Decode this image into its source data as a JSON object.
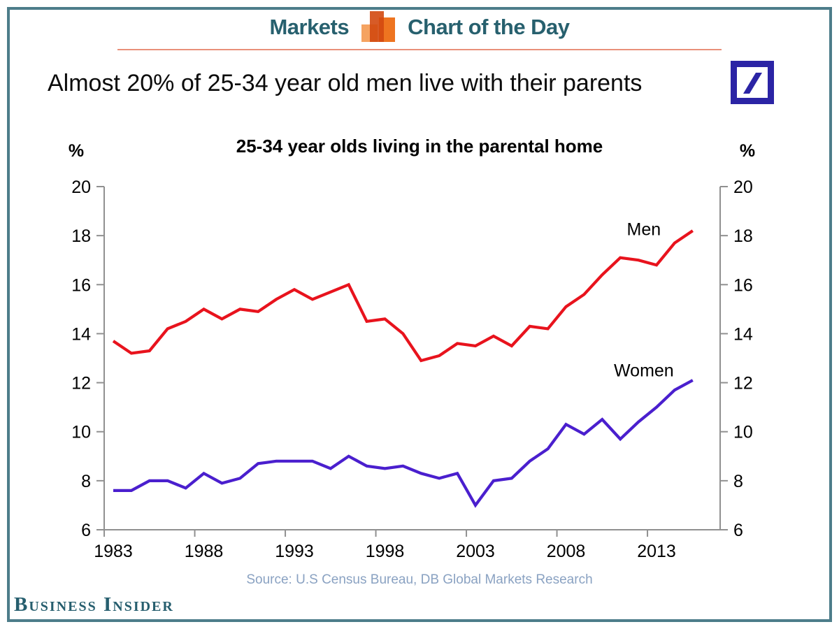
{
  "colors": {
    "frame_border": "#4d7d8a",
    "header_text": "#27606e",
    "divider": "#e9907a",
    "db_blue": "#2b24a5",
    "axis": "#909090",
    "source_text": "#8aa2c2",
    "bi_text": "#265e6e",
    "icon_light": "#f5a361",
    "icon_dark": "#d3490f",
    "icon_mid": "#ee7420",
    "men_line": "#e8131d",
    "women_line": "#4a1fce"
  },
  "header": {
    "left_label": "Markets",
    "right_label": "Chart of the Day",
    "icon": "bar-chart-icon"
  },
  "headline": "Almost 20% of 25-34 year old men live with their parents",
  "chart_data": {
    "type": "line",
    "title": "25-34 year olds living in the parental home",
    "y_unit_left": "%",
    "y_unit_right": "%",
    "ylim": [
      6,
      20
    ],
    "yticks": [
      6,
      8,
      10,
      12,
      14,
      16,
      18,
      20
    ],
    "xticks": [
      1983,
      1988,
      1993,
      1998,
      2003,
      2008,
      2013
    ],
    "grid": false,
    "legend_position": "inline-annotations",
    "x": [
      1983,
      1984,
      1985,
      1986,
      1987,
      1988,
      1989,
      1990,
      1991,
      1992,
      1993,
      1994,
      1995,
      1996,
      1997,
      1998,
      1999,
      2000,
      2001,
      2002,
      2003,
      2004,
      2005,
      2006,
      2007,
      2008,
      2009,
      2010,
      2011,
      2012,
      2013,
      2014,
      2015
    ],
    "series": [
      {
        "name": "Men",
        "color": "#e8131d",
        "values": [
          13.7,
          13.2,
          13.3,
          14.2,
          14.5,
          15.0,
          14.6,
          15.0,
          14.9,
          15.4,
          15.8,
          15.4,
          15.7,
          16.0,
          14.5,
          14.6,
          14.0,
          12.9,
          13.1,
          13.6,
          13.5,
          13.9,
          13.5,
          14.3,
          14.2,
          15.1,
          15.6,
          16.4,
          17.1,
          17.0,
          16.8,
          17.7,
          18.2
        ],
        "label_x": 2012.3,
        "label_y": 18.3
      },
      {
        "name": "Women",
        "color": "#4a1fce",
        "values": [
          7.6,
          7.6,
          8.0,
          8.0,
          7.7,
          8.3,
          7.9,
          8.1,
          8.7,
          8.8,
          8.8,
          8.8,
          8.5,
          9.0,
          8.6,
          8.5,
          8.6,
          8.3,
          8.1,
          8.3,
          7.0,
          8.0,
          8.1,
          8.8,
          9.3,
          10.3,
          9.9,
          10.5,
          9.7,
          10.4,
          11.0,
          11.7,
          12.1
        ],
        "label_x": 2012.3,
        "label_y": 12.55
      }
    ]
  },
  "source_note": "Source: U.S Census Bureau, DB Global Markets Research",
  "footer": {
    "logo_text": "Business Insider"
  }
}
